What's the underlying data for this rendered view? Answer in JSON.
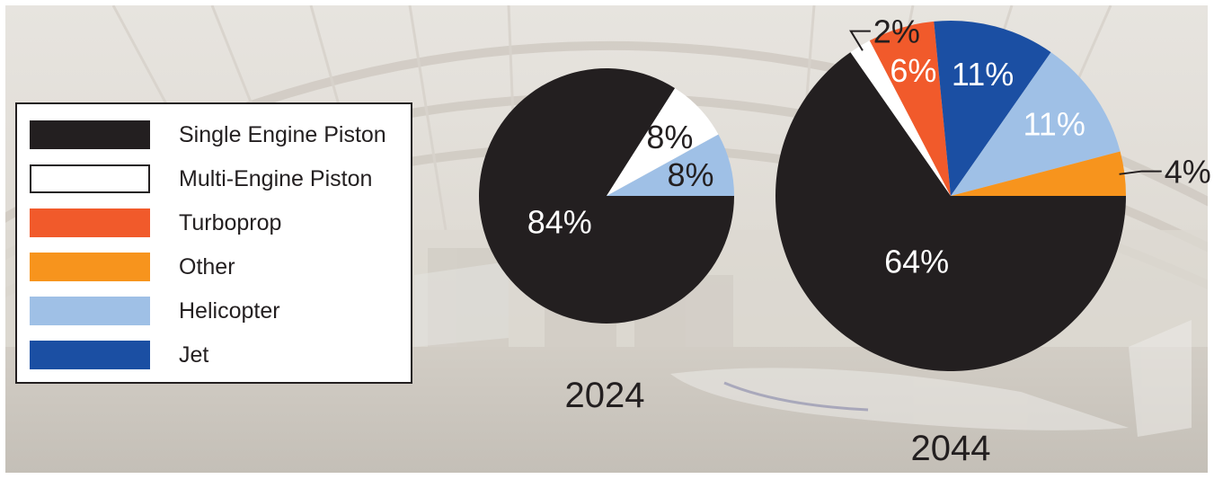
{
  "colors": {
    "single_engine_piston": "#231f20",
    "multi_engine_piston": "#ffffff",
    "turboprop": "#f15a2b",
    "other": "#f7941d",
    "helicopter": "#9fc0e6",
    "jet": "#1b4fa3"
  },
  "legend": {
    "items": [
      {
        "label": "Single Engine Piston",
        "key": "single_engine_piston"
      },
      {
        "label": "Multi-Engine Piston",
        "key": "multi_engine_piston"
      },
      {
        "label": "Turboprop",
        "key": "turboprop"
      },
      {
        "label": "Other",
        "key": "other"
      },
      {
        "label": "Helicopter",
        "key": "helicopter"
      },
      {
        "label": "Jet",
        "key": "jet"
      }
    ]
  },
  "chart_data": [
    {
      "type": "pie",
      "title": "2024",
      "slices": [
        {
          "name": "Single Engine Piston",
          "value": 84,
          "label": "84%"
        },
        {
          "name": "Multi-Engine Piston",
          "value": 8,
          "label": "8%"
        },
        {
          "name": "Helicopter",
          "value": 8,
          "label": "8%"
        }
      ]
    },
    {
      "type": "pie",
      "title": "2044",
      "slices": [
        {
          "name": "Single Engine Piston",
          "value": 64,
          "label": "64%"
        },
        {
          "name": "Multi-Engine Piston",
          "value": 2,
          "label": "2%"
        },
        {
          "name": "Turboprop",
          "value": 6,
          "label": "6%"
        },
        {
          "name": "Jet",
          "value": 11,
          "label": "11%"
        },
        {
          "name": "Helicopter",
          "value": 11,
          "label": "11%"
        },
        {
          "name": "Other",
          "value": 4,
          "label": "4%"
        }
      ]
    }
  ]
}
